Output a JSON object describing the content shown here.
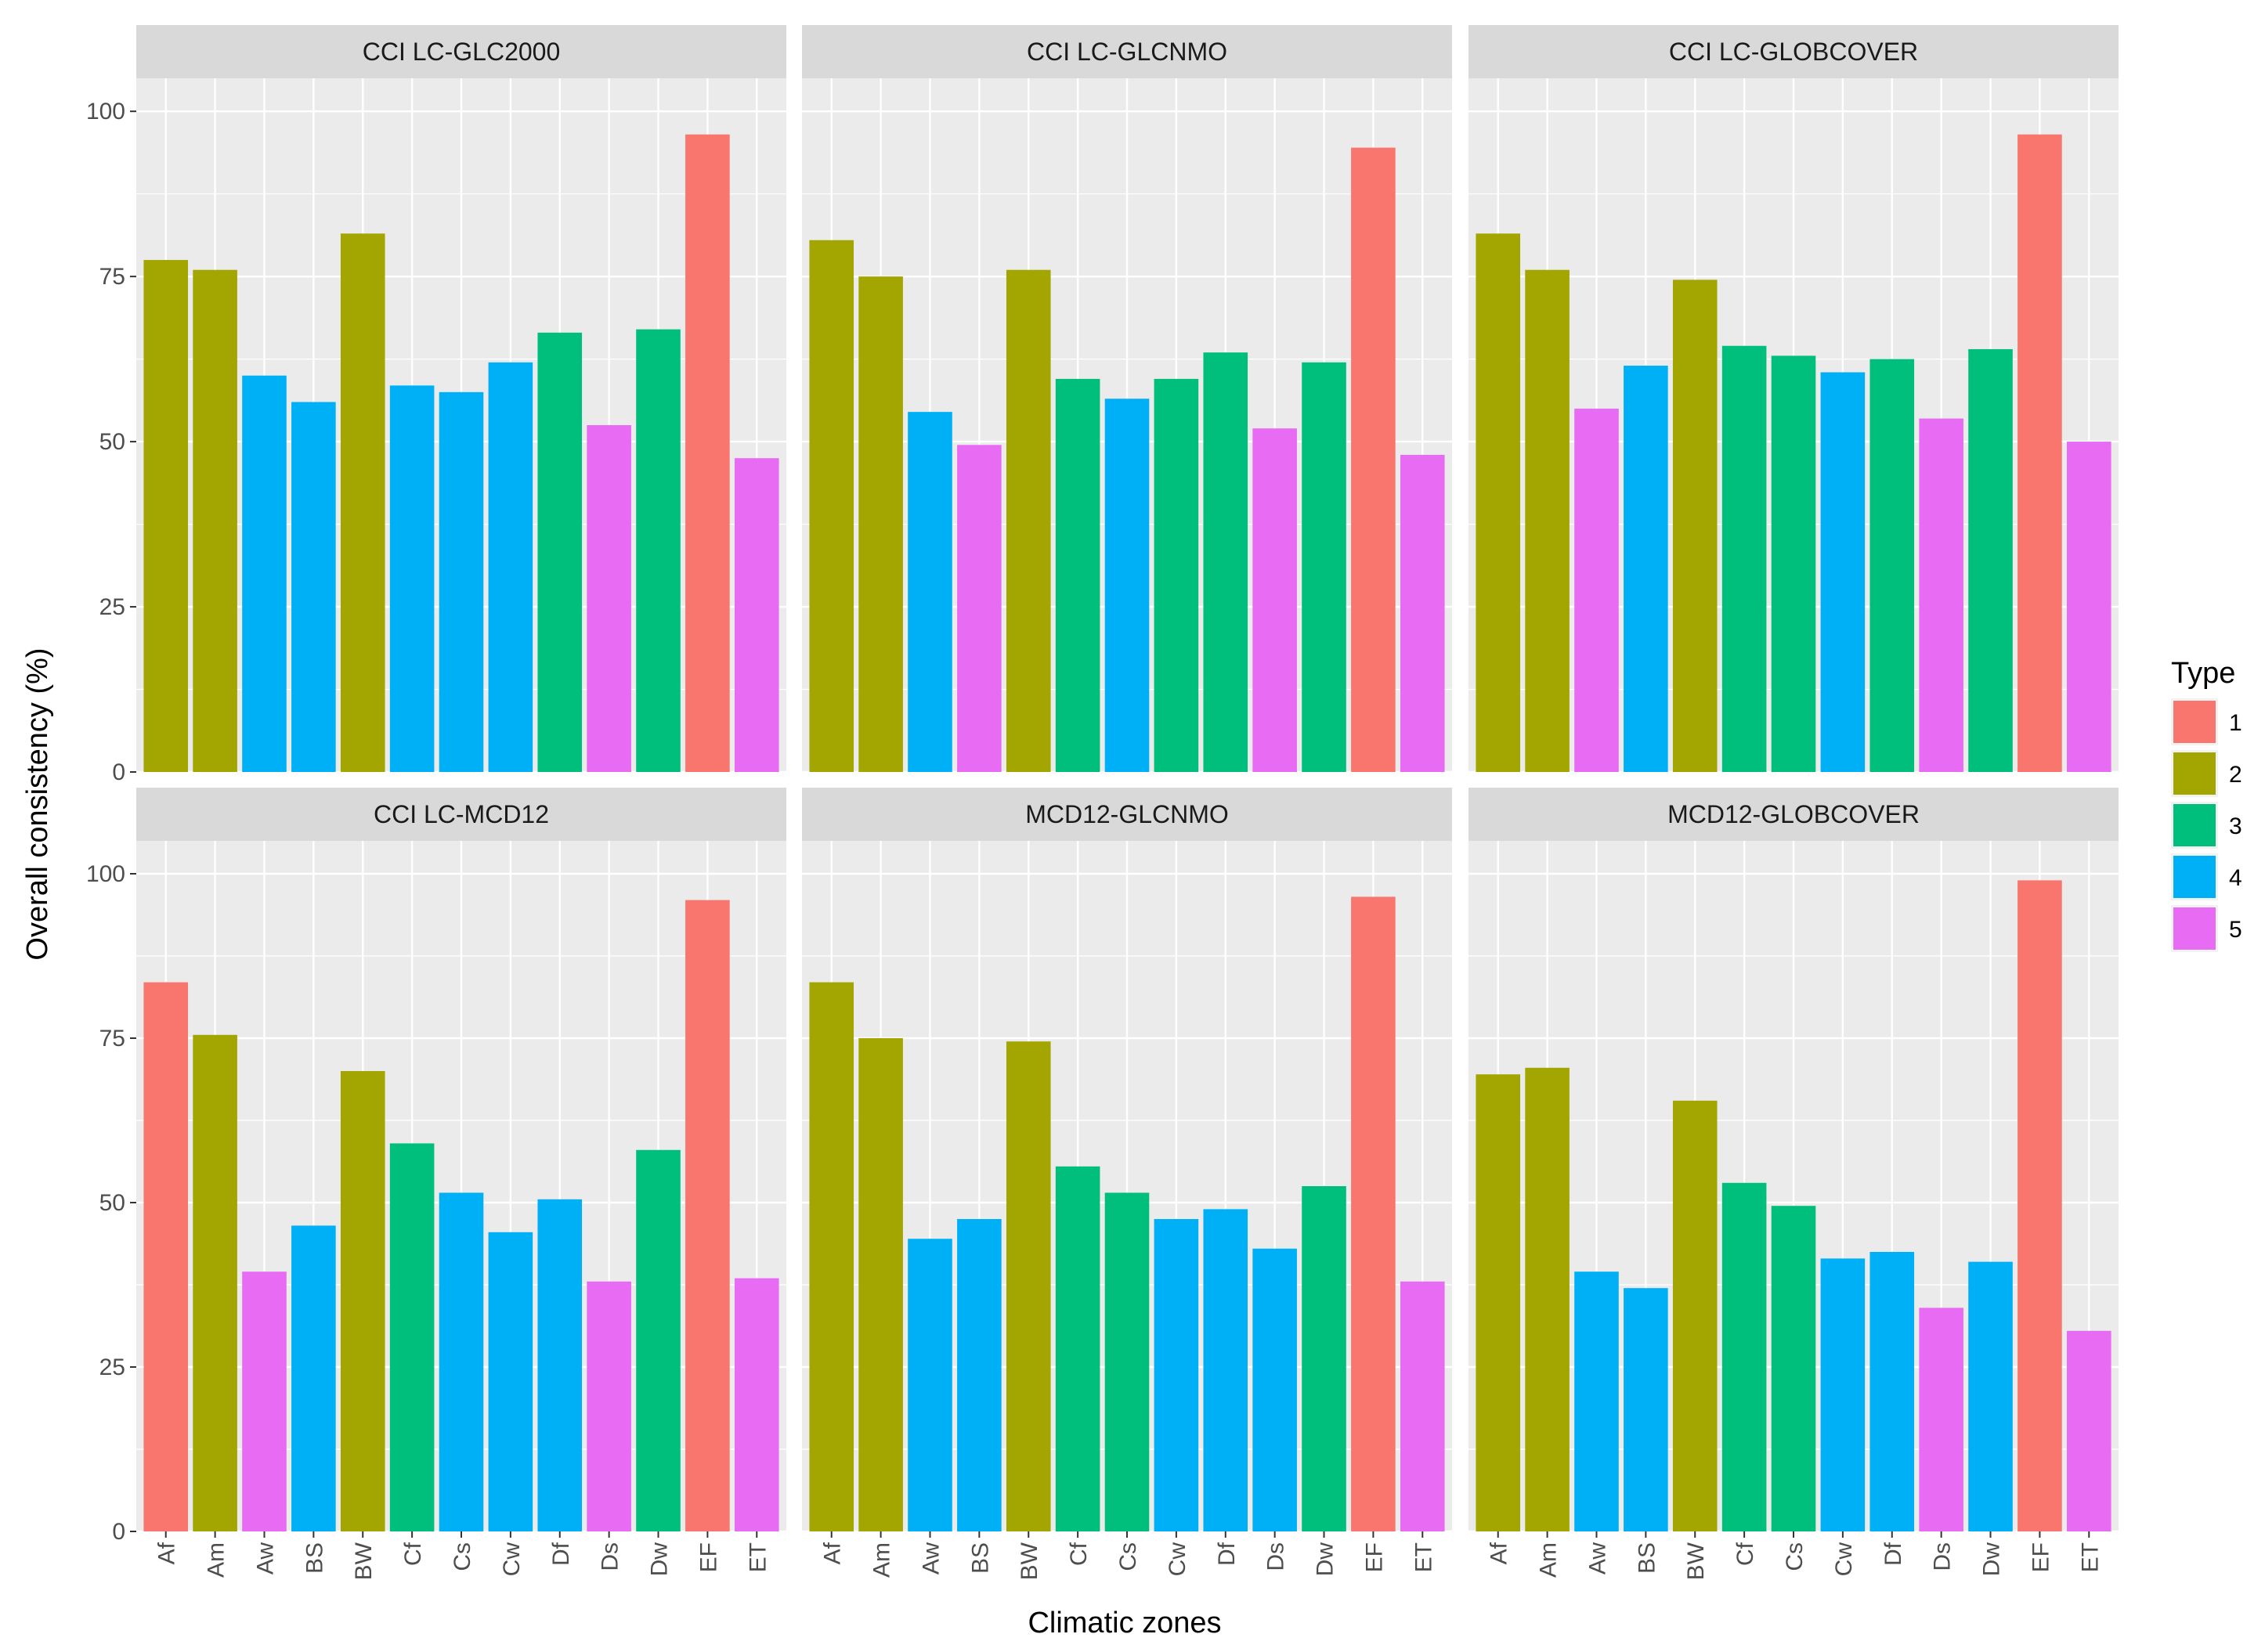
{
  "chart_data": {
    "type": "bar",
    "xlabel": "Climatic zones",
    "ylabel": "Overall consistency (%)",
    "ylim": [
      0,
      105
    ],
    "yticks": [
      0,
      25,
      50,
      75,
      100
    ],
    "ytick_labels": [
      "0",
      "25",
      "50",
      "75",
      "100"
    ],
    "categories": [
      "Af",
      "Am",
      "Aw",
      "BS",
      "BW",
      "Cf",
      "Cs",
      "Cw",
      "Df",
      "Ds",
      "Dw",
      "EF",
      "ET"
    ],
    "grid": true,
    "legend": {
      "title": "Type",
      "position": "right",
      "entries": [
        {
          "label": "1",
          "color": "#F8766D"
        },
        {
          "label": "2",
          "color": "#A3A500"
        },
        {
          "label": "3",
          "color": "#00BF7D"
        },
        {
          "label": "4",
          "color": "#00B0F6"
        },
        {
          "label": "5",
          "color": "#E76BF3"
        }
      ]
    },
    "panels": [
      {
        "title": "CCI LC-GLC2000",
        "values": [
          77.5,
          76,
          60,
          56,
          81.5,
          58.5,
          57.5,
          62,
          66.5,
          52.5,
          67,
          96.5,
          47.5
        ],
        "types": [
          2,
          2,
          4,
          4,
          2,
          4,
          4,
          4,
          3,
          5,
          3,
          1,
          5
        ]
      },
      {
        "title": "CCI LC-GLCNMO",
        "values": [
          80.5,
          75,
          54.5,
          49.5,
          76,
          59.5,
          56.5,
          59.5,
          63.5,
          52,
          62,
          94.5,
          48
        ],
        "types": [
          2,
          2,
          4,
          5,
          2,
          3,
          4,
          3,
          3,
          5,
          3,
          1,
          5
        ]
      },
      {
        "title": "CCI LC-GLOBCOVER",
        "values": [
          81.5,
          76,
          55,
          61.5,
          74.5,
          64.5,
          63,
          60.5,
          62.5,
          53.5,
          64,
          96.5,
          50
        ],
        "types": [
          2,
          2,
          5,
          4,
          2,
          3,
          3,
          4,
          3,
          5,
          3,
          1,
          5
        ]
      },
      {
        "title": "CCI LC-MCD12",
        "values": [
          83.5,
          75.5,
          39.5,
          46.5,
          70,
          59,
          51.5,
          45.5,
          50.5,
          38,
          58,
          96,
          38.5
        ],
        "types": [
          1,
          2,
          5,
          4,
          2,
          3,
          4,
          4,
          4,
          5,
          3,
          1,
          5
        ]
      },
      {
        "title": "MCD12-GLCNMO",
        "values": [
          83.5,
          75,
          44.5,
          47.5,
          74.5,
          55.5,
          51.5,
          47.5,
          49,
          43,
          52.5,
          96.5,
          38
        ],
        "types": [
          2,
          2,
          4,
          4,
          2,
          3,
          3,
          4,
          4,
          4,
          3,
          1,
          5
        ]
      },
      {
        "title": "MCD12-GLOBCOVER",
        "values": [
          69.5,
          70.5,
          39.5,
          37,
          65.5,
          53,
          49.5,
          41.5,
          42.5,
          34,
          41,
          99,
          30.5
        ],
        "types": [
          2,
          2,
          4,
          4,
          2,
          3,
          3,
          4,
          4,
          5,
          4,
          1,
          5
        ]
      }
    ]
  }
}
